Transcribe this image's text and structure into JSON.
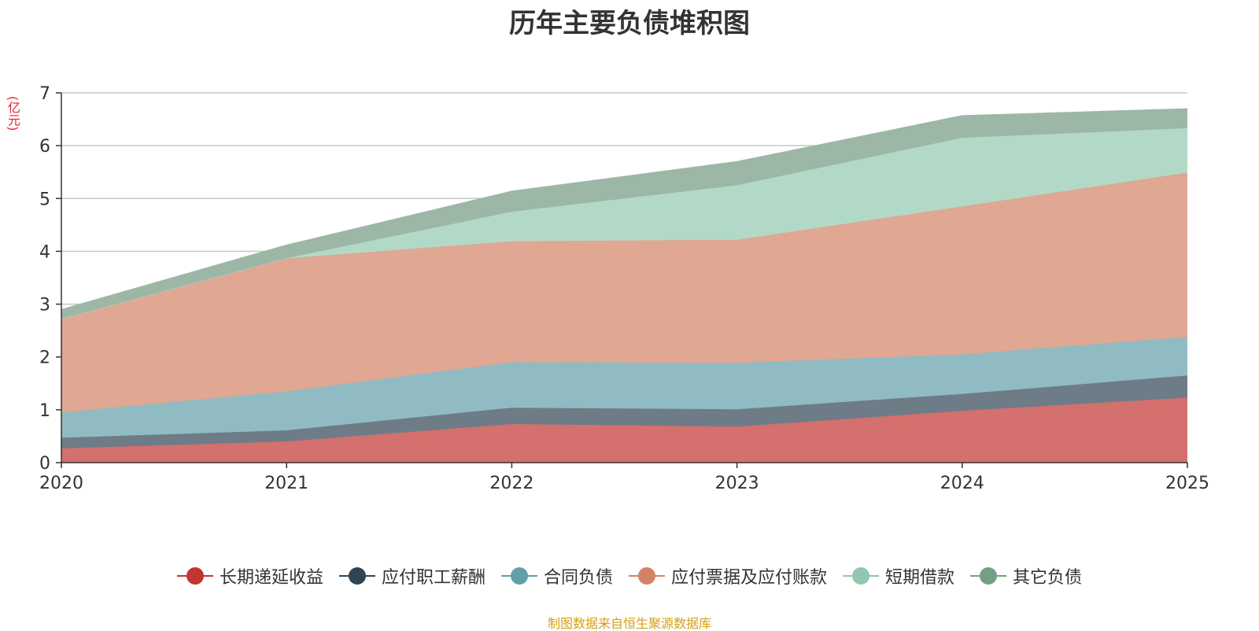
{
  "chart_data": {
    "type": "area",
    "stacked": true,
    "title": "历年主要负债堆积图",
    "ylabel": "(亿元)",
    "xlabel": "",
    "ylim": [
      0,
      7
    ],
    "yticks": [
      0,
      1,
      2,
      3,
      4,
      5,
      6,
      7
    ],
    "grid": true,
    "legend_position": "bottom",
    "categories": [
      "2020",
      "2021",
      "2022",
      "2023",
      "2024",
      "2025"
    ],
    "series": [
      {
        "name": "长期递延收益",
        "color": "#c23531",
        "fill": "#d4706d",
        "values": [
          0.27,
          0.4,
          0.73,
          0.68,
          0.98,
          1.23
        ]
      },
      {
        "name": "应付职工薪酬",
        "color": "#2f4554",
        "fill": "#6e7c87",
        "values": [
          0.2,
          0.21,
          0.31,
          0.33,
          0.32,
          0.42
        ]
      },
      {
        "name": "合同负债",
        "color": "#61a0a8",
        "fill": "#91bbc2",
        "values": [
          0.48,
          0.74,
          0.86,
          0.88,
          0.75,
          0.73
        ]
      },
      {
        "name": "应付票据及应付账款",
        "color": "#d48265",
        "fill": "#e0a792",
        "values": [
          1.77,
          2.52,
          2.29,
          2.33,
          2.8,
          3.11
        ]
      },
      {
        "name": "短期借款",
        "color": "#91c7ae",
        "fill": "#b2d9c7",
        "values": [
          0.0,
          0.0,
          0.56,
          1.03,
          1.3,
          0.84
        ]
      },
      {
        "name": "其它负债",
        "color": "#749f83",
        "fill": "#9db7a6",
        "values": [
          0.18,
          0.25,
          0.39,
          0.45,
          0.42,
          0.37
        ]
      }
    ]
  },
  "source_note": "制图数据来自恒生聚源数据库"
}
